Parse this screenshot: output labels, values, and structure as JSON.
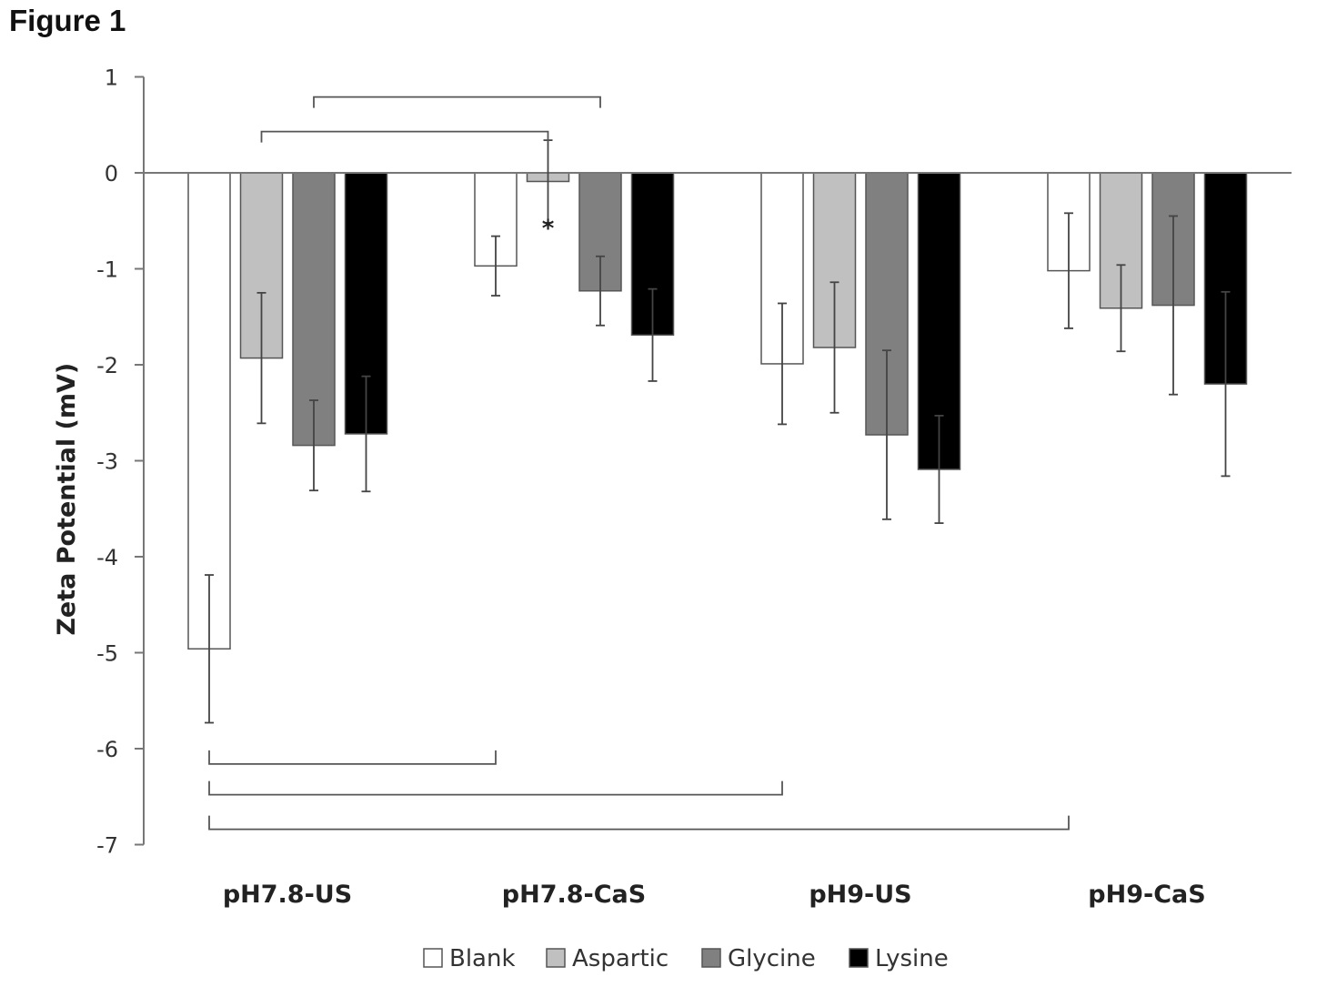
{
  "figure_label": "Figure 1",
  "chart_data": {
    "type": "bar",
    "title": "",
    "xlabel": "",
    "ylabel": "Zeta Potential (mV)",
    "ylim": [
      -7,
      1
    ],
    "yticks": [
      1,
      0,
      -1,
      -2,
      -3,
      -4,
      -5,
      -6,
      -7
    ],
    "grid": false,
    "legend_position": "bottom",
    "categories": [
      "pH7.8-US",
      "pH7.8-CaS",
      "pH9-US",
      "pH9-CaS"
    ],
    "series": [
      {
        "name": "Blank",
        "color": "#ffffff",
        "values": [
          -4.96,
          -0.97,
          -1.99,
          -1.02
        ],
        "errors": [
          0.77,
          0.31,
          0.63,
          0.6
        ]
      },
      {
        "name": "Aspartic",
        "color": "#c0c0c0",
        "values": [
          -1.93,
          -0.09,
          -1.82,
          -1.41
        ],
        "errors": [
          0.68,
          0.43,
          0.68,
          0.45
        ]
      },
      {
        "name": "Glycine",
        "color": "#808080",
        "values": [
          -2.84,
          -1.23,
          -2.73,
          -1.38
        ],
        "errors": [
          0.47,
          0.36,
          0.88,
          0.93
        ]
      },
      {
        "name": "Lysine",
        "color": "#000000",
        "values": [
          -2.72,
          -1.69,
          -3.09,
          -2.2
        ],
        "errors": [
          0.6,
          0.48,
          0.56,
          0.96
        ]
      }
    ],
    "annotations": {
      "asterisk": {
        "text": "*",
        "category": 1,
        "series": 1
      },
      "brackets_top": [
        {
          "from": [
            0,
            2
          ],
          "to": [
            1,
            2
          ],
          "y": 0.79
        },
        {
          "from": [
            0,
            1
          ],
          "to": [
            1,
            1
          ],
          "y": 0.43
        }
      ],
      "brackets_bottom": [
        {
          "from": [
            0,
            0
          ],
          "to": [
            1,
            0
          ],
          "y": -6.16
        },
        {
          "from": [
            0,
            0
          ],
          "to": [
            2,
            0
          ],
          "y": -6.48
        },
        {
          "from": [
            0,
            0
          ],
          "to": [
            3,
            0
          ],
          "y": -6.84
        }
      ]
    }
  }
}
